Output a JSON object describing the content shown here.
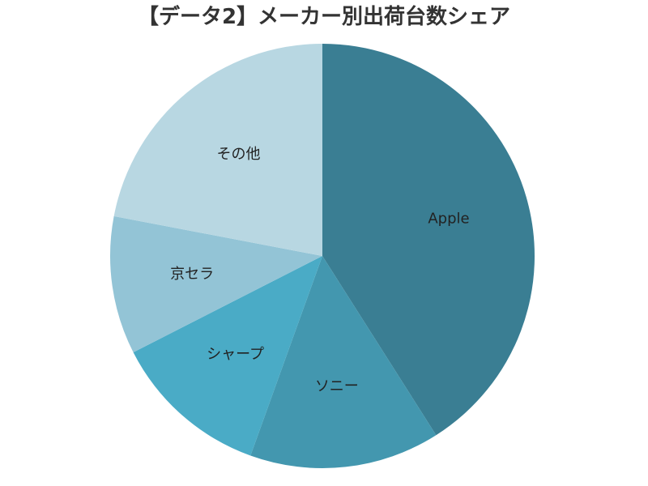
{
  "chart_data": {
    "type": "pie",
    "title": "【データ2】メーカー別出荷台数シェア",
    "start": "top",
    "direction": "clockwise",
    "legend": "none",
    "slices": [
      {
        "label": "Apple",
        "value": 41.0,
        "color": "#3A7E93"
      },
      {
        "label": "ソニー",
        "value": 14.5,
        "color": "#4397AF"
      },
      {
        "label": "シャープ",
        "value": 12.0,
        "color": "#4AABC6"
      },
      {
        "label": "京セラ",
        "value": 10.5,
        "color": "#93C4D6"
      },
      {
        "label": "その他",
        "value": 22.0,
        "color": "#B8D7E2"
      }
    ]
  }
}
